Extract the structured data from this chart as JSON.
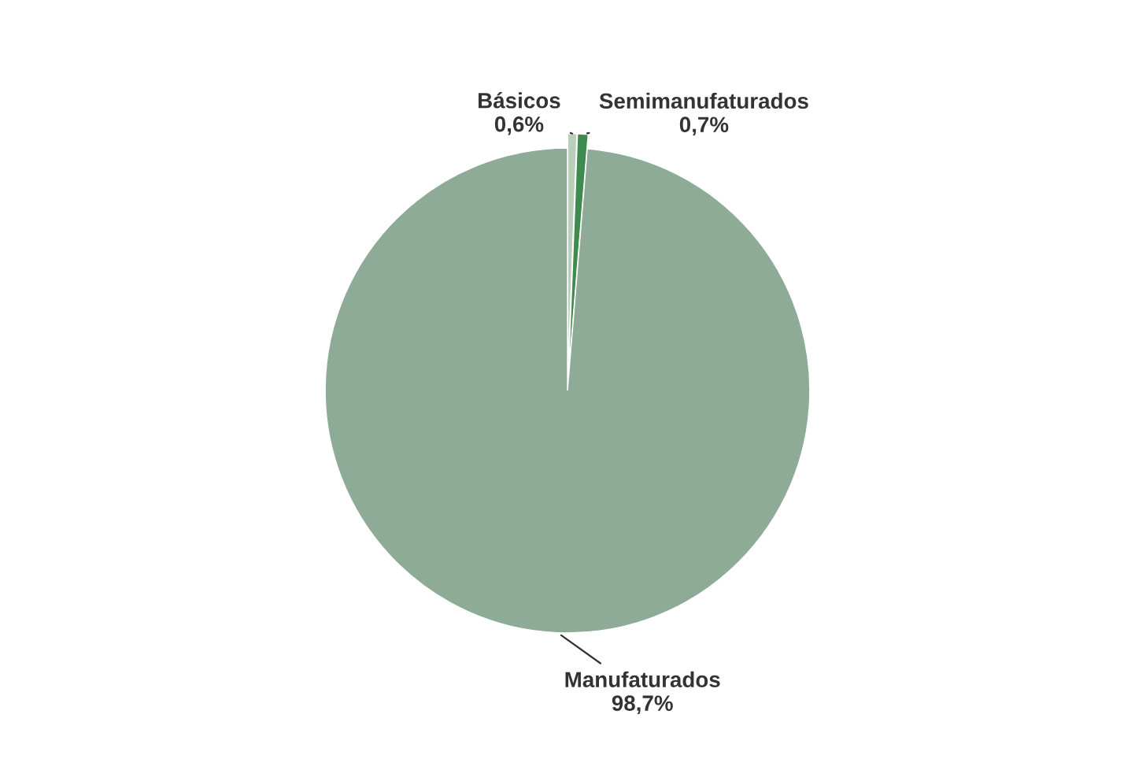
{
  "chart_data": {
    "type": "pie",
    "categories": [
      "Básicos",
      "Semimanufaturados",
      "Manufaturados"
    ],
    "values": [
      0.6,
      0.7,
      98.7
    ],
    "value_labels": [
      "0,6%",
      "0,7%",
      "98,7%"
    ],
    "colors": [
      "#b9cfb9",
      "#3d8b4f",
      "#8eab98"
    ],
    "legend": false
  }
}
